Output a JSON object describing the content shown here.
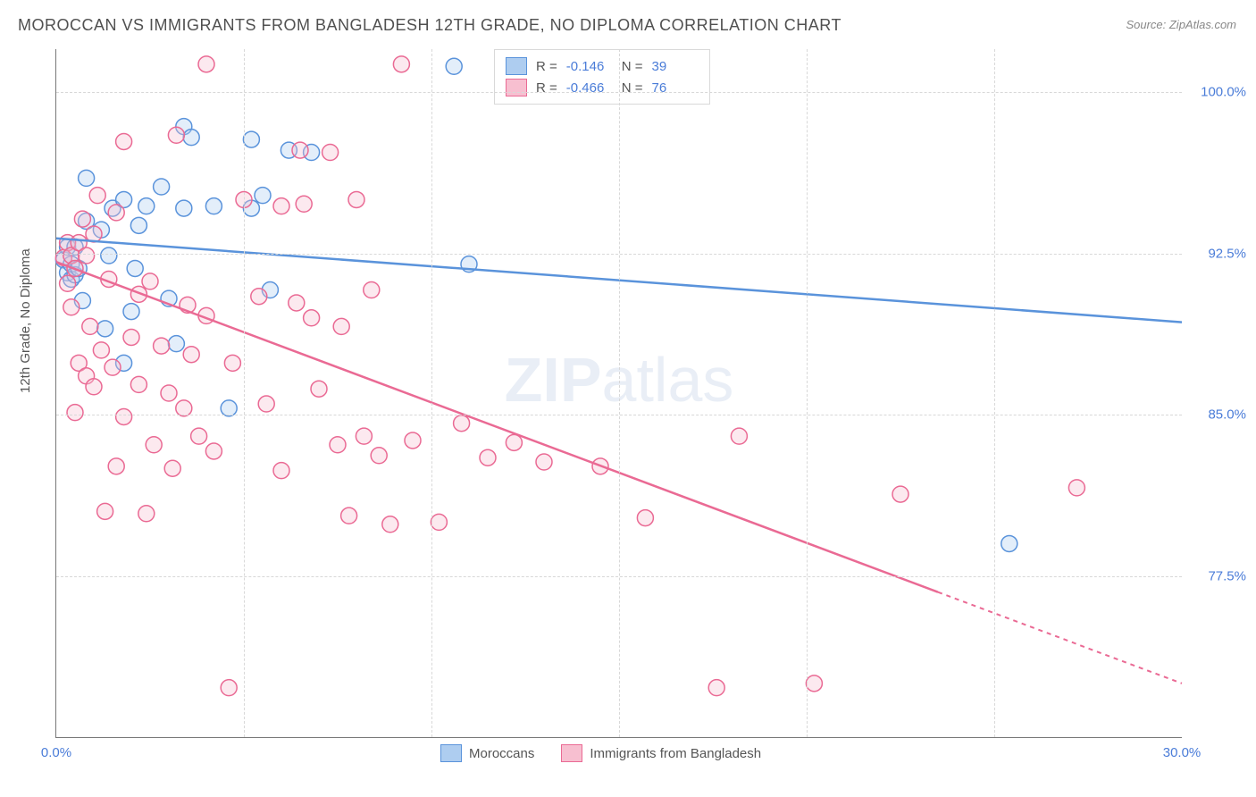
{
  "title": "MOROCCAN VS IMMIGRANTS FROM BANGLADESH 12TH GRADE, NO DIPLOMA CORRELATION CHART",
  "source": "Source: ZipAtlas.com",
  "ylabel": "12th Grade, No Diploma",
  "watermark_a": "ZIP",
  "watermark_b": "atlas",
  "chart": {
    "type": "scatter",
    "xlim": [
      0,
      30
    ],
    "ylim": [
      70,
      102
    ],
    "yticks": [
      {
        "v": 77.5,
        "label": "77.5%"
      },
      {
        "v": 85.0,
        "label": "85.0%"
      },
      {
        "v": 92.5,
        "label": "92.5%"
      },
      {
        "v": 100.0,
        "label": "100.0%"
      }
    ],
    "xticks": [
      {
        "v": 0.0,
        "label": "0.0%"
      },
      {
        "v": 5.0,
        "label": ""
      },
      {
        "v": 10.0,
        "label": ""
      },
      {
        "v": 15.0,
        "label": ""
      },
      {
        "v": 20.0,
        "label": ""
      },
      {
        "v": 25.0,
        "label": ""
      },
      {
        "v": 30.0,
        "label": "30.0%"
      }
    ],
    "background_color": "#ffffff",
    "grid_color": "#d8d8d8",
    "marker_radius": 9,
    "series": [
      {
        "name": "Moroccans",
        "color": "#6da3e8",
        "fill": "#aecdf0",
        "stroke": "#5a93db",
        "r": -0.146,
        "n": 39,
        "trend": {
          "x1": 0,
          "y1": 93.2,
          "x2": 30,
          "y2": 89.3,
          "dash_from_x": 30
        },
        "points": [
          [
            0.2,
            92.2
          ],
          [
            0.3,
            91.6
          ],
          [
            0.3,
            92.8
          ],
          [
            0.4,
            91.3
          ],
          [
            0.4,
            92.0
          ],
          [
            0.5,
            92.8
          ],
          [
            0.5,
            91.5
          ],
          [
            0.6,
            91.8
          ],
          [
            0.7,
            90.3
          ],
          [
            0.8,
            94.0
          ],
          [
            0.8,
            96.0
          ],
          [
            1.2,
            93.6
          ],
          [
            1.3,
            89.0
          ],
          [
            1.4,
            92.4
          ],
          [
            1.5,
            94.6
          ],
          [
            1.8,
            95.0
          ],
          [
            1.8,
            87.4
          ],
          [
            2.0,
            89.8
          ],
          [
            2.1,
            91.8
          ],
          [
            2.2,
            93.8
          ],
          [
            2.4,
            94.7
          ],
          [
            2.8,
            95.6
          ],
          [
            3.0,
            90.4
          ],
          [
            3.2,
            88.3
          ],
          [
            3.4,
            98.4
          ],
          [
            3.4,
            94.6
          ],
          [
            3.6,
            97.9
          ],
          [
            4.2,
            94.7
          ],
          [
            4.6,
            85.3
          ],
          [
            5.2,
            97.8
          ],
          [
            5.2,
            94.6
          ],
          [
            5.5,
            95.2
          ],
          [
            5.7,
            90.8
          ],
          [
            6.2,
            97.3
          ],
          [
            6.8,
            97.2
          ],
          [
            10.6,
            101.2
          ],
          [
            11.0,
            92.0
          ],
          [
            15.3,
            101.2
          ],
          [
            25.4,
            79.0
          ]
        ]
      },
      {
        "name": "Immigrants from Bangladesh",
        "color": "#ef7aa2",
        "fill": "#f7bfd0",
        "stroke": "#ea6a94",
        "r": -0.466,
        "n": 76,
        "trend": {
          "x1": 0,
          "y1": 92.1,
          "x2": 30,
          "y2": 72.5,
          "dash_from_x": 23.5
        },
        "points": [
          [
            0.2,
            92.3
          ],
          [
            0.3,
            91.1
          ],
          [
            0.3,
            93.0
          ],
          [
            0.4,
            92.4
          ],
          [
            0.4,
            90.0
          ],
          [
            0.5,
            91.8
          ],
          [
            0.5,
            85.1
          ],
          [
            0.6,
            93.0
          ],
          [
            0.6,
            87.4
          ],
          [
            0.7,
            94.1
          ],
          [
            0.8,
            86.8
          ],
          [
            0.8,
            92.4
          ],
          [
            0.9,
            89.1
          ],
          [
            1.0,
            93.4
          ],
          [
            1.0,
            86.3
          ],
          [
            1.1,
            95.2
          ],
          [
            1.2,
            88.0
          ],
          [
            1.3,
            80.5
          ],
          [
            1.4,
            91.3
          ],
          [
            1.5,
            87.2
          ],
          [
            1.6,
            94.4
          ],
          [
            1.6,
            82.6
          ],
          [
            1.8,
            97.7
          ],
          [
            1.8,
            84.9
          ],
          [
            2.0,
            88.6
          ],
          [
            2.2,
            90.6
          ],
          [
            2.2,
            86.4
          ],
          [
            2.4,
            80.4
          ],
          [
            2.5,
            91.2
          ],
          [
            2.6,
            83.6
          ],
          [
            2.8,
            88.2
          ],
          [
            3.0,
            86.0
          ],
          [
            3.1,
            82.5
          ],
          [
            3.2,
            98.0
          ],
          [
            3.4,
            85.3
          ],
          [
            3.5,
            90.1
          ],
          [
            3.6,
            87.8
          ],
          [
            3.8,
            84.0
          ],
          [
            4.0,
            101.3
          ],
          [
            4.0,
            89.6
          ],
          [
            4.2,
            83.3
          ],
          [
            4.6,
            72.3
          ],
          [
            4.7,
            87.4
          ],
          [
            5.0,
            95.0
          ],
          [
            5.4,
            90.5
          ],
          [
            5.6,
            85.5
          ],
          [
            6.0,
            94.7
          ],
          [
            6.0,
            82.4
          ],
          [
            6.4,
            90.2
          ],
          [
            6.5,
            97.3
          ],
          [
            6.6,
            94.8
          ],
          [
            6.8,
            89.5
          ],
          [
            7.0,
            86.2
          ],
          [
            7.3,
            97.2
          ],
          [
            7.5,
            83.6
          ],
          [
            7.6,
            89.1
          ],
          [
            7.8,
            80.3
          ],
          [
            8.0,
            95.0
          ],
          [
            8.2,
            84.0
          ],
          [
            8.4,
            90.8
          ],
          [
            8.6,
            83.1
          ],
          [
            8.9,
            79.9
          ],
          [
            9.2,
            101.3
          ],
          [
            9.5,
            83.8
          ],
          [
            10.2,
            80.0
          ],
          [
            10.8,
            84.6
          ],
          [
            11.5,
            83.0
          ],
          [
            12.2,
            83.7
          ],
          [
            13.0,
            82.8
          ],
          [
            14.5,
            82.6
          ],
          [
            15.7,
            80.2
          ],
          [
            17.6,
            72.3
          ],
          [
            18.2,
            84.0
          ],
          [
            20.2,
            72.5
          ],
          [
            22.5,
            81.3
          ],
          [
            27.2,
            81.6
          ]
        ]
      }
    ]
  },
  "legend_stats_labels": {
    "r": "R =",
    "n": "N ="
  }
}
